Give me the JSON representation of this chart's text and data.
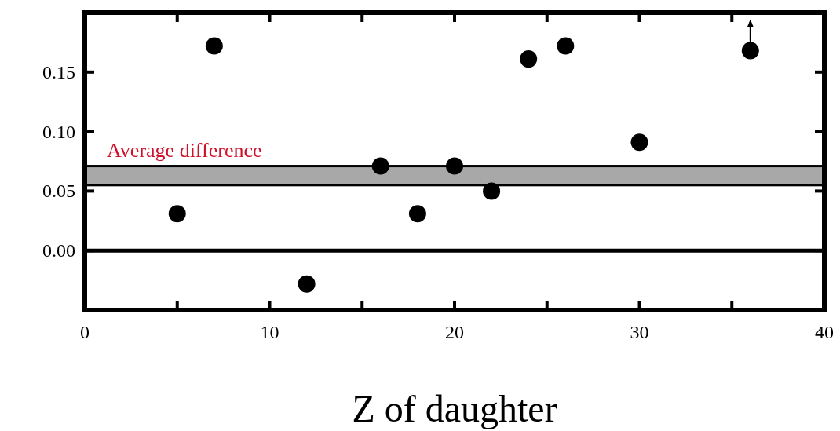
{
  "chart_data": {
    "type": "scatter",
    "xlabel": "Z of daughter",
    "x": [
      5,
      7,
      12,
      16,
      18,
      20,
      22,
      24,
      26,
      30,
      36
    ],
    "series": [
      {
        "color": "#000000",
        "values": [
          0.031,
          0.172,
          -0.028,
          0.071,
          0.031,
          0.071,
          0.05,
          0.161,
          0.172,
          0.091,
          0.168
        ]
      }
    ],
    "marker": "circle",
    "xlim": [
      0,
      40
    ],
    "ylim": [
      -0.05,
      0.2
    ],
    "xticks": [
      0,
      {
        "value": 5,
        "label": null
      },
      10,
      {
        "value": 15,
        "label": null
      },
      20,
      {
        "value": 25,
        "label": null
      },
      30,
      {
        "value": 35,
        "label": null
      },
      40
    ],
    "yticks": [
      {
        "value": 0,
        "label": "0.00"
      },
      {
        "value": 0.05,
        "label": "0.05"
      },
      {
        "value": 0.1,
        "label": "0.10"
      },
      {
        "value": 0.15,
        "label": "0.15"
      }
    ],
    "ref_lines": [
      {
        "axis": "y",
        "value": 0,
        "color": "#000000"
      }
    ],
    "bands": [
      {
        "axis": "y",
        "from": 0.055,
        "to": 0.071,
        "label": "Average difference",
        "color": "#a8a8a8"
      }
    ],
    "grid": false
  }
}
